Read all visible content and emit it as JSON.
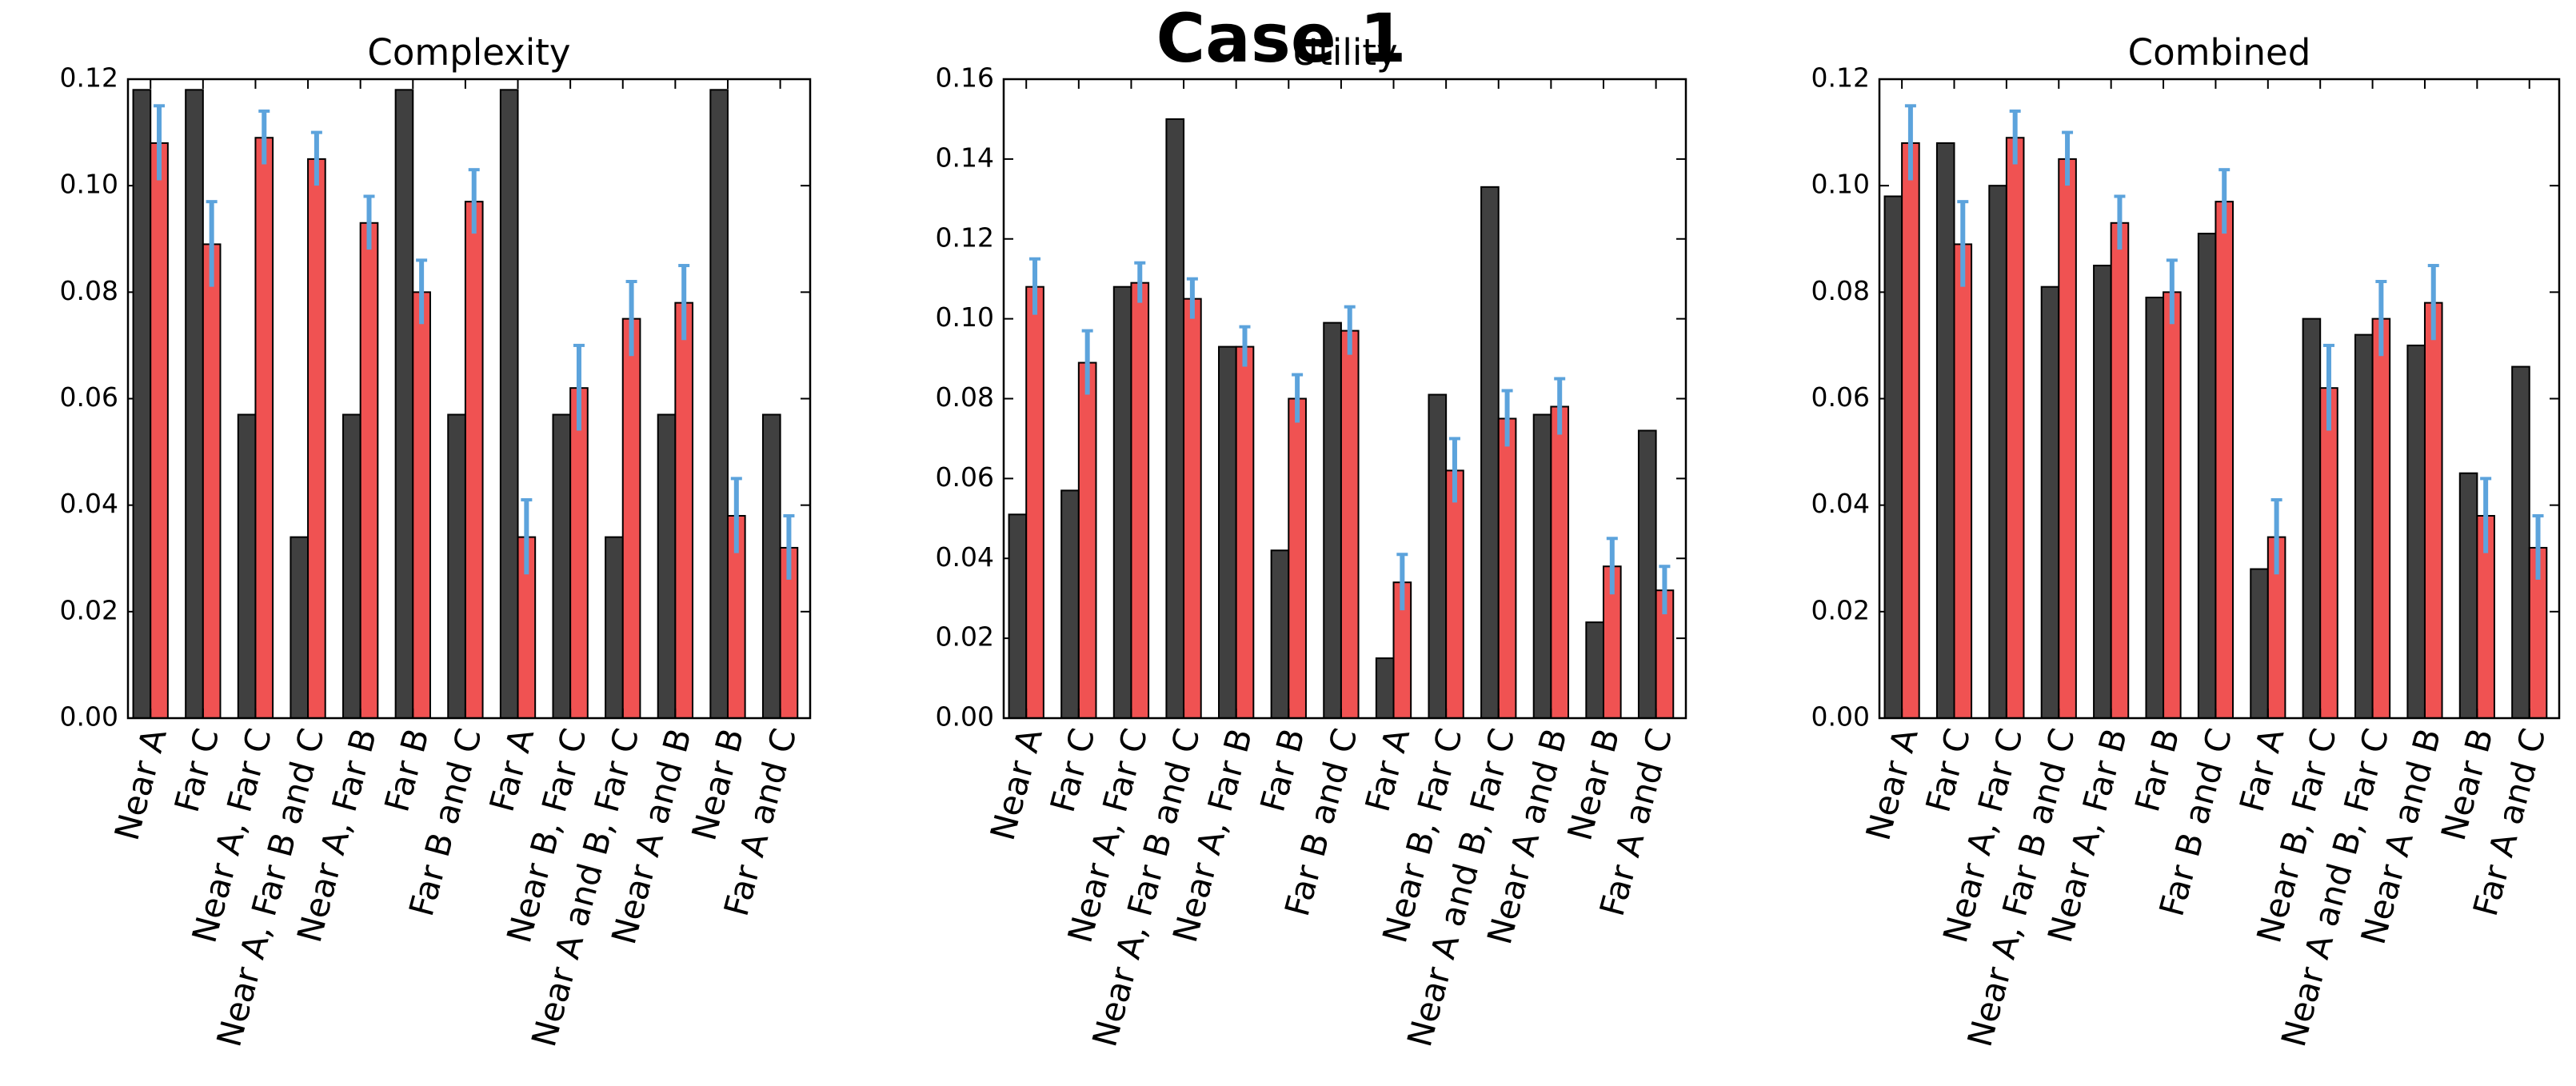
{
  "title": "Case 1",
  "chart_data": [
    {
      "type": "bar",
      "title": "Complexity",
      "categories": [
        "Near A",
        "Far C",
        "Near A, Far C",
        "Near A, Far B and C",
        "Near A, Far B",
        "Far B",
        "Far B and C",
        "Far A",
        "Near B, Far C",
        "Near A and B, Far C",
        "Near A and B",
        "Near B",
        "Far A and C"
      ],
      "series": [
        {
          "color": "#404040",
          "values": [
            0.118,
            0.118,
            0.057,
            0.034,
            0.057,
            0.118,
            0.057,
            0.118,
            0.057,
            0.034,
            0.057,
            0.118,
            0.057
          ]
        },
        {
          "color": "#f05252",
          "error_color": "#5ca3dc",
          "values": [
            0.108,
            0.089,
            0.109,
            0.105,
            0.093,
            0.08,
            0.097,
            0.034,
            0.062,
            0.075,
            0.078,
            0.038,
            0.032
          ],
          "errors": [
            0.007,
            0.008,
            0.005,
            0.005,
            0.005,
            0.006,
            0.006,
            0.007,
            0.008,
            0.007,
            0.007,
            0.007,
            0.006
          ]
        }
      ],
      "ylim": [
        0,
        0.12
      ],
      "yticks": [
        {
          "value": 0,
          "label": "0.00"
        },
        0.02,
        0.04,
        0.06,
        0.08,
        {
          "value": 0.1,
          "label": "0.10"
        },
        0.12
      ]
    },
    {
      "type": "bar",
      "title": "Utility",
      "categories": [
        "Near A",
        "Far C",
        "Near A, Far C",
        "Near A, Far B and C",
        "Near A, Far B",
        "Far B",
        "Far B and C",
        "Far A",
        "Near B, Far C",
        "Near A and B, Far C",
        "Near A and B",
        "Near B",
        "Far A and C"
      ],
      "series": [
        {
          "color": "#404040",
          "values": [
            0.051,
            0.057,
            0.108,
            0.15,
            0.093,
            0.042,
            0.099,
            0.015,
            0.081,
            0.133,
            0.076,
            0.024,
            0.072
          ]
        },
        {
          "color": "#f05252",
          "error_color": "#5ca3dc",
          "values": [
            0.108,
            0.089,
            0.109,
            0.105,
            0.093,
            0.08,
            0.097,
            0.034,
            0.062,
            0.075,
            0.078,
            0.038,
            0.032
          ],
          "errors": [
            0.007,
            0.008,
            0.005,
            0.005,
            0.005,
            0.006,
            0.006,
            0.007,
            0.008,
            0.007,
            0.007,
            0.007,
            0.006
          ]
        }
      ],
      "ylim": [
        0,
        0.16
      ],
      "yticks": [
        {
          "value": 0,
          "label": "0.00"
        },
        0.02,
        0.04,
        0.06,
        0.08,
        {
          "value": 0.1,
          "label": "0.10"
        },
        0.12,
        0.14,
        0.16
      ]
    },
    {
      "type": "bar",
      "title": "Combined",
      "categories": [
        "Near A",
        "Far C",
        "Near A, Far C",
        "Near A, Far B and C",
        "Near A, Far B",
        "Far B",
        "Far B and C",
        "Far A",
        "Near B, Far C",
        "Near A and B, Far C",
        "Near A and B",
        "Near B",
        "Far A and C"
      ],
      "series": [
        {
          "color": "#404040",
          "values": [
            0.098,
            0.108,
            0.1,
            0.081,
            0.085,
            0.079,
            0.091,
            0.028,
            0.075,
            0.072,
            0.07,
            0.046,
            0.066
          ]
        },
        {
          "color": "#f05252",
          "error_color": "#5ca3dc",
          "values": [
            0.108,
            0.089,
            0.109,
            0.105,
            0.093,
            0.08,
            0.097,
            0.034,
            0.062,
            0.075,
            0.078,
            0.038,
            0.032
          ],
          "errors": [
            0.007,
            0.008,
            0.005,
            0.005,
            0.005,
            0.006,
            0.006,
            0.007,
            0.008,
            0.007,
            0.007,
            0.007,
            0.006
          ]
        }
      ],
      "ylim": [
        0,
        0.12
      ],
      "yticks": [
        {
          "value": 0,
          "label": "0.00"
        },
        0.02,
        0.04,
        0.06,
        0.08,
        {
          "value": 0.1,
          "label": "0.10"
        },
        0.12
      ]
    }
  ]
}
